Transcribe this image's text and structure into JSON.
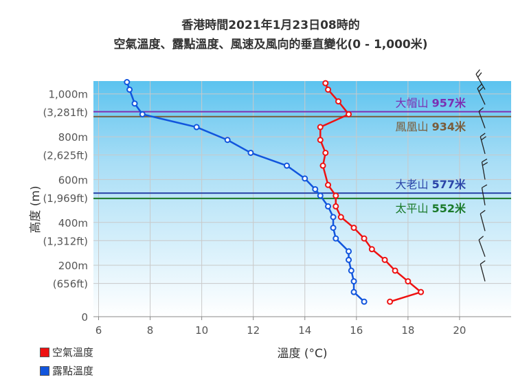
{
  "chart_data": {
    "type": "line",
    "title": "香港時間2021年1月23日08時的",
    "subtitle": "空氣溫度、露點溫度、風速及風向的垂直變化(0 - 1,000米)",
    "xlabel": "溫度 (°C)",
    "ylabel": "高度 (m)",
    "xlim": [
      5.8,
      22
    ],
    "ylim": [
      0,
      1100
    ],
    "grid": true,
    "legend_position": "bottom-left",
    "x_ticks": [
      "6",
      "8",
      "10",
      "12",
      "14",
      "16",
      "18",
      "20"
    ],
    "x_tick_values": [
      6,
      8,
      10,
      12,
      14,
      16,
      18,
      20
    ],
    "y_ticks": [
      {
        "value": 1040,
        "label": "1,000m"
      },
      {
        "value": 955,
        "label": "(3,281ft)"
      },
      {
        "value": 840,
        "label": "800m"
      },
      {
        "value": 755,
        "label": "(2,625ft)"
      },
      {
        "value": 640,
        "label": "600m"
      },
      {
        "value": 555,
        "label": "(1,969ft)"
      },
      {
        "value": 440,
        "label": "400m"
      },
      {
        "value": 355,
        "label": "(1,312ft)"
      },
      {
        "value": 240,
        "label": "200m"
      },
      {
        "value": 155,
        "label": "(656ft)"
      },
      {
        "value": 0,
        "label": "0"
      }
    ],
    "series": [
      {
        "name": "空氣溫度",
        "color": "#ee1111",
        "points": [
          [
            17.3,
            70
          ],
          [
            18.5,
            115
          ],
          [
            18.0,
            165
          ],
          [
            17.5,
            215
          ],
          [
            17.1,
            265
          ],
          [
            16.6,
            315
          ],
          [
            16.3,
            365
          ],
          [
            15.9,
            415
          ],
          [
            15.4,
            465
          ],
          [
            15.2,
            515
          ],
          [
            15.2,
            565
          ],
          [
            14.9,
            615
          ],
          [
            14.7,
            705
          ],
          [
            14.8,
            765
          ],
          [
            14.6,
            825
          ],
          [
            14.6,
            885
          ],
          [
            15.7,
            945
          ],
          [
            15.3,
            1005
          ],
          [
            14.9,
            1060
          ],
          [
            14.8,
            1090
          ]
        ]
      },
      {
        "name": "露點溫度",
        "color": "#1155dd",
        "points": [
          [
            16.3,
            70
          ],
          [
            15.9,
            115
          ],
          [
            15.9,
            165
          ],
          [
            15.8,
            215
          ],
          [
            15.7,
            265
          ],
          [
            15.7,
            305
          ],
          [
            15.2,
            365
          ],
          [
            15.1,
            415
          ],
          [
            15.1,
            465
          ],
          [
            14.9,
            515
          ],
          [
            14.6,
            565
          ],
          [
            14.4,
            595
          ],
          [
            14.0,
            645
          ],
          [
            13.3,
            705
          ],
          [
            11.9,
            765
          ],
          [
            11.0,
            825
          ],
          [
            9.8,
            885
          ],
          [
            7.7,
            945
          ],
          [
            7.4,
            995
          ],
          [
            7.2,
            1060
          ],
          [
            7.1,
            1095
          ]
        ]
      }
    ],
    "reference_lines": [
      {
        "label": "大帽山",
        "value_text": "957米",
        "height": 957,
        "color": "#7b2fb3"
      },
      {
        "label": "鳳凰山",
        "value_text": "934米",
        "height": 934,
        "color": "#7a5c3a"
      },
      {
        "label": "大老山",
        "value_text": "577米",
        "height": 577,
        "color": "#2a44a8"
      },
      {
        "label": "太平山",
        "value_text": "552米",
        "height": 552,
        "color": "#1a7a2a"
      }
    ],
    "wind_barbs": [
      {
        "height": 1060,
        "direction_deg": 330,
        "barbs": 2
      },
      {
        "height": 990,
        "direction_deg": 335,
        "barbs": 2
      },
      {
        "height": 880,
        "direction_deg": 340,
        "barbs": 1
      },
      {
        "height": 760,
        "direction_deg": 345,
        "barbs": 2
      },
      {
        "height": 640,
        "direction_deg": 350,
        "barbs": 2
      },
      {
        "height": 520,
        "direction_deg": 350,
        "barbs": 1
      },
      {
        "height": 400,
        "direction_deg": 345,
        "barbs": 1
      },
      {
        "height": 280,
        "direction_deg": 340,
        "barbs": 1
      },
      {
        "height": 165,
        "direction_deg": 345,
        "barbs": 1
      }
    ]
  }
}
